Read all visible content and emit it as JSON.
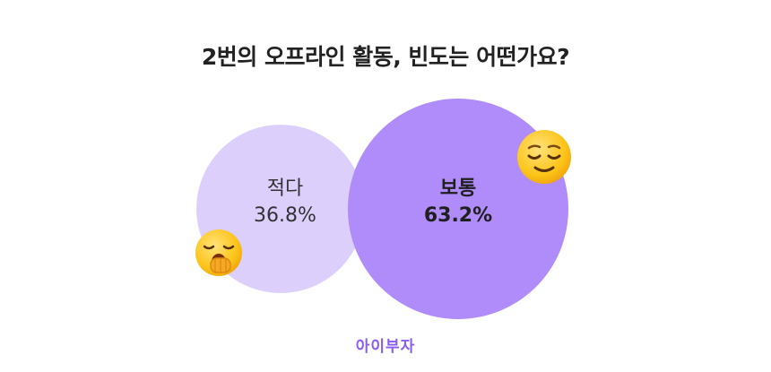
{
  "title": "2번의 오프라인 활동, 빈도는 어떤가요?",
  "brand": "아이부자",
  "colors": {
    "minor_bubble": "#dccffc",
    "major_bubble": "#b08cfa",
    "brand": "#8a5cf5",
    "emoji_face": "#fcc419"
  },
  "icons": {
    "minor": "yawning-face-icon",
    "major": "relieved-face-icon"
  },
  "chart_data": {
    "type": "bubble",
    "title": "2번의 오프라인 활동, 빈도는 어떤가요?",
    "categories": [
      "적다",
      "보통"
    ],
    "values": [
      36.8,
      63.2
    ],
    "value_labels": [
      "36.8%",
      "63.2%"
    ],
    "unit": "%"
  }
}
